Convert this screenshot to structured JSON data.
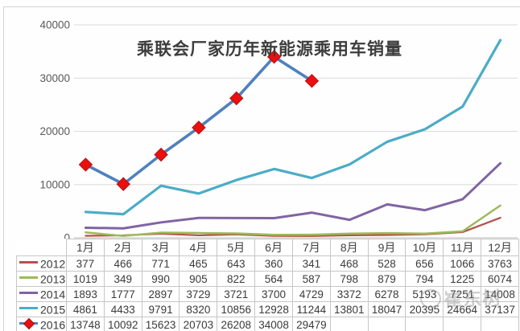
{
  "watermark": {
    "text": "崔东树"
  },
  "chart_data": {
    "type": "line",
    "title": "乘联会厂家历年新能源乘用车销量",
    "categories": [
      "1月",
      "2月",
      "3月",
      "4月",
      "5月",
      "6月",
      "7月",
      "8月",
      "9月",
      "10月",
      "11月",
      "12月"
    ],
    "series": [
      {
        "name": "2012",
        "color": "#b5524c",
        "values": [
          377,
          466,
          771,
          465,
          643,
          360,
          341,
          468,
          528,
          656,
          1066,
          3763
        ]
      },
      {
        "name": "2013",
        "color": "#9bbb59",
        "values": [
          1019,
          349,
          990,
          905,
          822,
          564,
          587,
          798,
          879,
          794,
          1225,
          6074
        ]
      },
      {
        "name": "2014",
        "color": "#8064a2",
        "values": [
          1893,
          1777,
          2897,
          3729,
          3721,
          3700,
          4729,
          3372,
          6278,
          5193,
          7251,
          14008
        ]
      },
      {
        "name": "2015",
        "color": "#4bacc6",
        "values": [
          4861,
          4433,
          9791,
          8320,
          10856,
          12928,
          11244,
          13801,
          18047,
          20395,
          24664,
          37137
        ]
      },
      {
        "name": "2016",
        "color": "#4f81bd",
        "marker": "diamond",
        "marker_color": "#ea1010",
        "values": [
          13748,
          10092,
          15623,
          20703,
          26208,
          34008,
          29479
        ]
      }
    ],
    "xlabel": "",
    "ylabel": "",
    "ylim": [
      0,
      40000
    ],
    "yticks": [
      0,
      10000,
      20000,
      30000,
      40000
    ],
    "grid": true,
    "legend_position": "table-left"
  }
}
